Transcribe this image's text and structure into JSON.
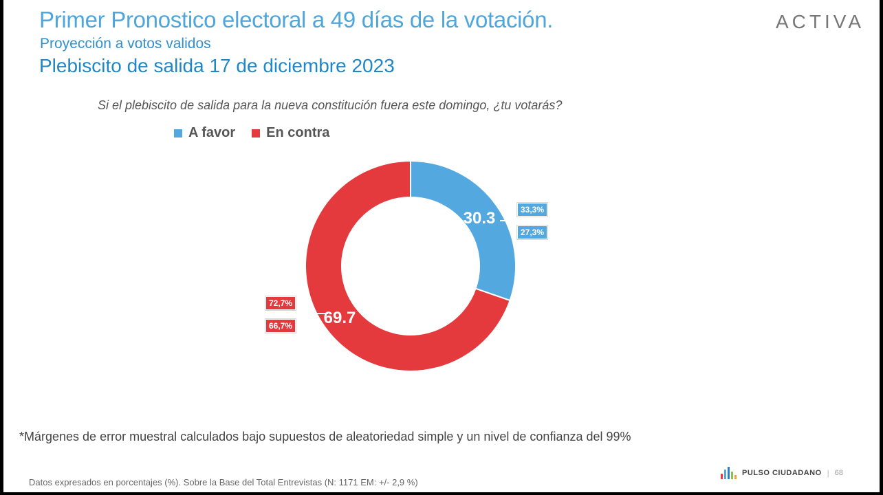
{
  "header": {
    "title": "Primer Pronostico electoral a 49 días de la votación.",
    "subtitle": "Proyección a votos validos",
    "subtitle2": "Plebiscito de salida 17 de diciembre 2023",
    "logo": "ACTIVA"
  },
  "question": "Si el plebiscito de salida para la nueva constitución fuera este domingo, ¿tu votarás?",
  "chart_data": {
    "type": "pie",
    "donut": true,
    "title": "Si el plebiscito de salida para la nueva constitución fuera este domingo, ¿tu votarás?",
    "legend_position": "top-left",
    "series": [
      {
        "name": "A favor",
        "value": 30.3,
        "label": "30.3",
        "upper": "33,3%",
        "lower": "27,3%",
        "color": "#54a8e0"
      },
      {
        "name": "En contra",
        "value": 69.7,
        "label": "69.7",
        "upper": "72,7%",
        "lower": "66,7%",
        "color": "#e43a3d"
      }
    ]
  },
  "legend": {
    "favor": "A favor",
    "contra": "En contra"
  },
  "footnote": "*Márgenes de error muestral calculados bajo supuestos de aleatoriedad simple y un nivel de confianza del 99%",
  "footer": {
    "base_text": "Datos expresados en porcentajes (%). Sobre la Base del Total Entrevistas (N: 1171  EM: +/- 2,9 %)",
    "brand": "PULSO CIUDADANO",
    "separator": "|",
    "page": "68"
  }
}
